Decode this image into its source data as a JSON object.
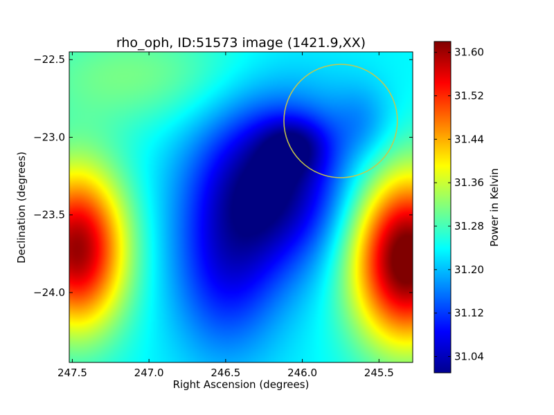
{
  "chart_data": {
    "type": "heatmap",
    "title": "rho_oph, ID:51573 image (1421.9,XX)",
    "xlabel": "Right Ascension (degrees)",
    "ylabel": "Declination (degrees)",
    "xlim": [
      247.52,
      245.28
    ],
    "ylim": [
      -24.45,
      -22.45
    ],
    "x_ticks": [
      247.5,
      247.0,
      246.5,
      246.0,
      245.5
    ],
    "x_tick_labels": [
      "247.5",
      "247.0",
      "246.5",
      "246.0",
      "245.5"
    ],
    "y_ticks": [
      -22.5,
      -23.0,
      -23.5,
      -24.0
    ],
    "y_tick_labels": [
      "−22.5",
      "−23.0",
      "−23.5",
      "−24.0"
    ],
    "colorbar": {
      "label": "Power in Kelvin",
      "range": [
        31.01,
        31.62
      ],
      "ticks": [
        31.04,
        31.12,
        31.2,
        31.28,
        31.36,
        31.44,
        31.52,
        31.6
      ],
      "tick_labels": [
        "31.04",
        "31.12",
        "31.20",
        "31.28",
        "31.36",
        "31.44",
        "31.52",
        "31.60"
      ],
      "colormap": "jet"
    },
    "features": [
      {
        "name": "left hot spot",
        "ra": 247.47,
        "dec": -23.72,
        "value": 31.57
      },
      {
        "name": "right hot spot",
        "ra": 245.32,
        "dec": -23.78,
        "value": 31.62
      },
      {
        "name": "central minimum",
        "ra": 246.2,
        "dec": -23.3,
        "value": 31.02
      },
      {
        "name": "top-left plateau",
        "ra": 247.3,
        "dec": -22.6,
        "value": 31.31
      }
    ],
    "circle": {
      "ra": 245.75,
      "dec": -22.895,
      "radius_deg": 0.365,
      "color": "#c8c84a"
    }
  }
}
